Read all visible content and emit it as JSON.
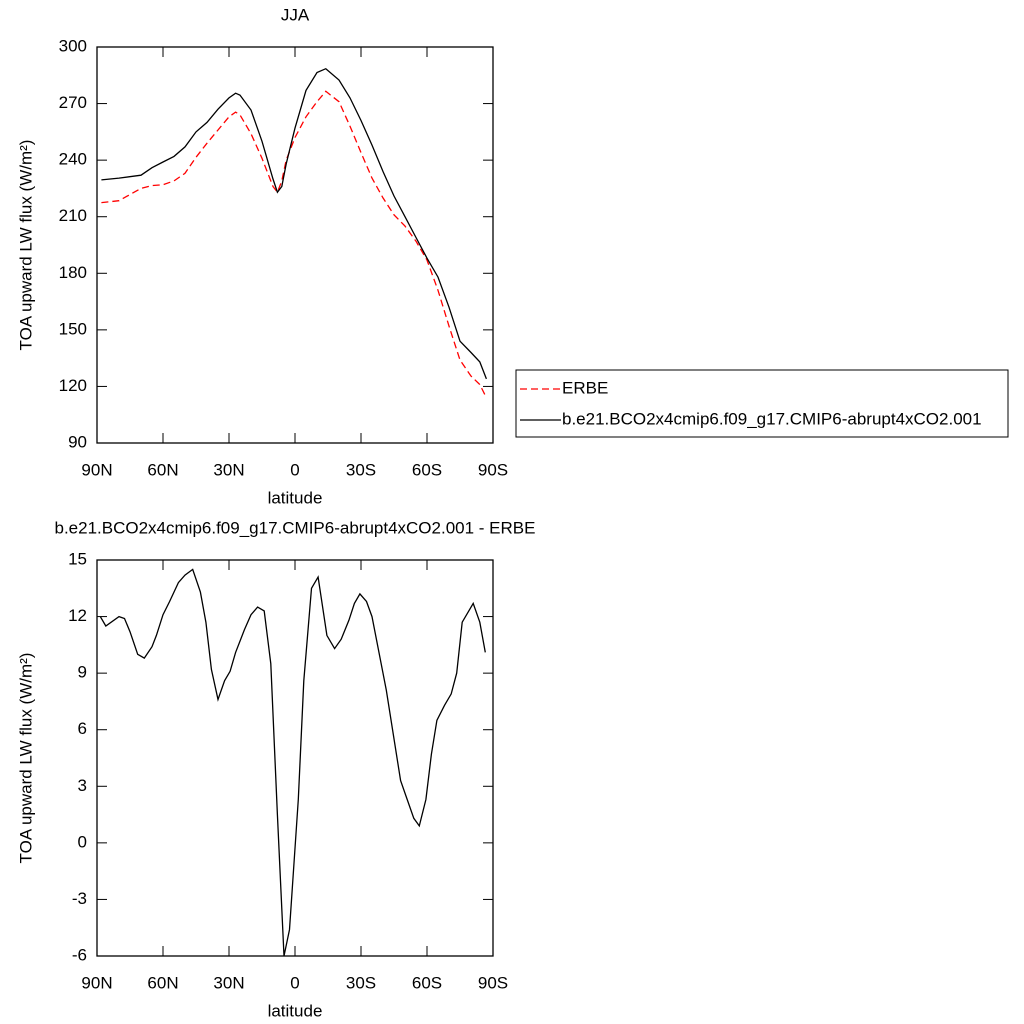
{
  "chart_data": [
    {
      "type": "line",
      "title": "JJA",
      "x_label": "latitude",
      "y_label": "TOA upward LW flux (W/m²)",
      "x": [
        88,
        80,
        70,
        65,
        60,
        55,
        50,
        45,
        40,
        35,
        30,
        27,
        25,
        20,
        15,
        10,
        8,
        6,
        4,
        0,
        -5,
        -10,
        -14,
        -20,
        -25,
        -30,
        -35,
        -40,
        -45,
        -50,
        -55,
        -60,
        -65,
        -70,
        -75,
        -80,
        -84,
        -87
      ],
      "xlim": [
        90,
        -90
      ],
      "xticks": [
        {
          "value": 90,
          "label": "90N"
        },
        {
          "value": 60,
          "label": "60N"
        },
        {
          "value": 30,
          "label": "30N"
        },
        0,
        {
          "value": -30,
          "label": "30S"
        },
        {
          "value": -60,
          "label": "60S"
        },
        {
          "value": -90,
          "label": "90S"
        }
      ],
      "ylim": [
        90,
        300
      ],
      "yticks": [
        90,
        120,
        150,
        180,
        210,
        240,
        270,
        300
      ],
      "legend": "right",
      "series": [
        {
          "name": "ERBE",
          "color": "#ff0000",
          "dash": "dashed",
          "values": [
            217.5,
            218.5,
            225,
            226.5,
            227,
            229,
            233,
            241.5,
            249,
            256,
            263,
            265.5,
            264,
            254,
            241,
            226,
            223,
            229,
            240,
            252,
            263,
            271,
            276.5,
            271,
            258,
            244,
            230.5,
            220,
            211,
            205,
            197,
            187,
            171,
            152,
            134,
            125.5,
            121,
            114
          ]
        },
        {
          "name": "b.e21.BCO2x4cmip6.f09_g17.CMIP6-abrupt4xCO2.001",
          "color": "#000000",
          "values": [
            229.5,
            230.5,
            232,
            236,
            239,
            242,
            247,
            255,
            260,
            267,
            273,
            275.5,
            274.5,
            266.6,
            250,
            230,
            223,
            226,
            238,
            257,
            277,
            286.5,
            288.5,
            282.5,
            273,
            261,
            248,
            234,
            221,
            210,
            199,
            188,
            178,
            162,
            144,
            138,
            133,
            124
          ]
        }
      ]
    },
    {
      "type": "line",
      "title": "b.e21.BCO2x4cmip6.f09_g17.CMIP6-abrupt4xCO2.001 - ERBE",
      "x_label": "latitude",
      "y_label": "TOA upward LW flux (W/m²)",
      "x": [
        88.5,
        86,
        80,
        77.5,
        75,
        71.5,
        68.5,
        65,
        63,
        60,
        57,
        53,
        50,
        46.5,
        43,
        40.5,
        38,
        35,
        32,
        29.5,
        27,
        23,
        20,
        17,
        14,
        11,
        8,
        5,
        2.5,
        -1.5,
        -4,
        -7.5,
        -10.5,
        -14.5,
        -18,
        -21,
        -24.5,
        -27,
        -29.5,
        -32.5,
        -35,
        -41.5,
        -48,
        -51,
        -54,
        -56.5,
        -59.5,
        -62,
        -64.5,
        -68,
        -71,
        -73.5,
        -76,
        -78.5,
        -81,
        -84,
        -86.5
      ],
      "xlim": [
        90,
        -90
      ],
      "xticks": [
        {
          "value": 90,
          "label": "90N"
        },
        {
          "value": 60,
          "label": "60N"
        },
        {
          "value": 30,
          "label": "30N"
        },
        0,
        {
          "value": -30,
          "label": "30S"
        },
        {
          "value": -60,
          "label": "60S"
        },
        {
          "value": -90,
          "label": "90S"
        }
      ],
      "ylim": [
        -6,
        15
      ],
      "yticks": [
        -6,
        -3,
        0,
        3,
        6,
        9,
        12,
        15
      ],
      "series": [
        {
          "color": "#000000",
          "values": [
            12,
            11.5,
            12,
            11.9,
            11.2,
            10,
            9.8,
            10.4,
            11,
            12.1,
            12.8,
            13.8,
            14.2,
            14.5,
            13.3,
            11.7,
            9.2,
            7.6,
            8.6,
            9.1,
            10.1,
            11.3,
            12.1,
            12.5,
            12.3,
            9.5,
            1.5,
            -6,
            -4.6,
            2.3,
            8.6,
            13.5,
            14.1,
            11,
            10.3,
            10.8,
            11.8,
            12.7,
            13.2,
            12.8,
            12,
            8.1,
            3.3,
            2.3,
            1.3,
            0.9,
            2.3,
            4.7,
            6.5,
            7.3,
            7.9,
            9,
            11.7,
            12.2,
            12.7,
            11.7,
            10.1
          ]
        }
      ]
    }
  ]
}
